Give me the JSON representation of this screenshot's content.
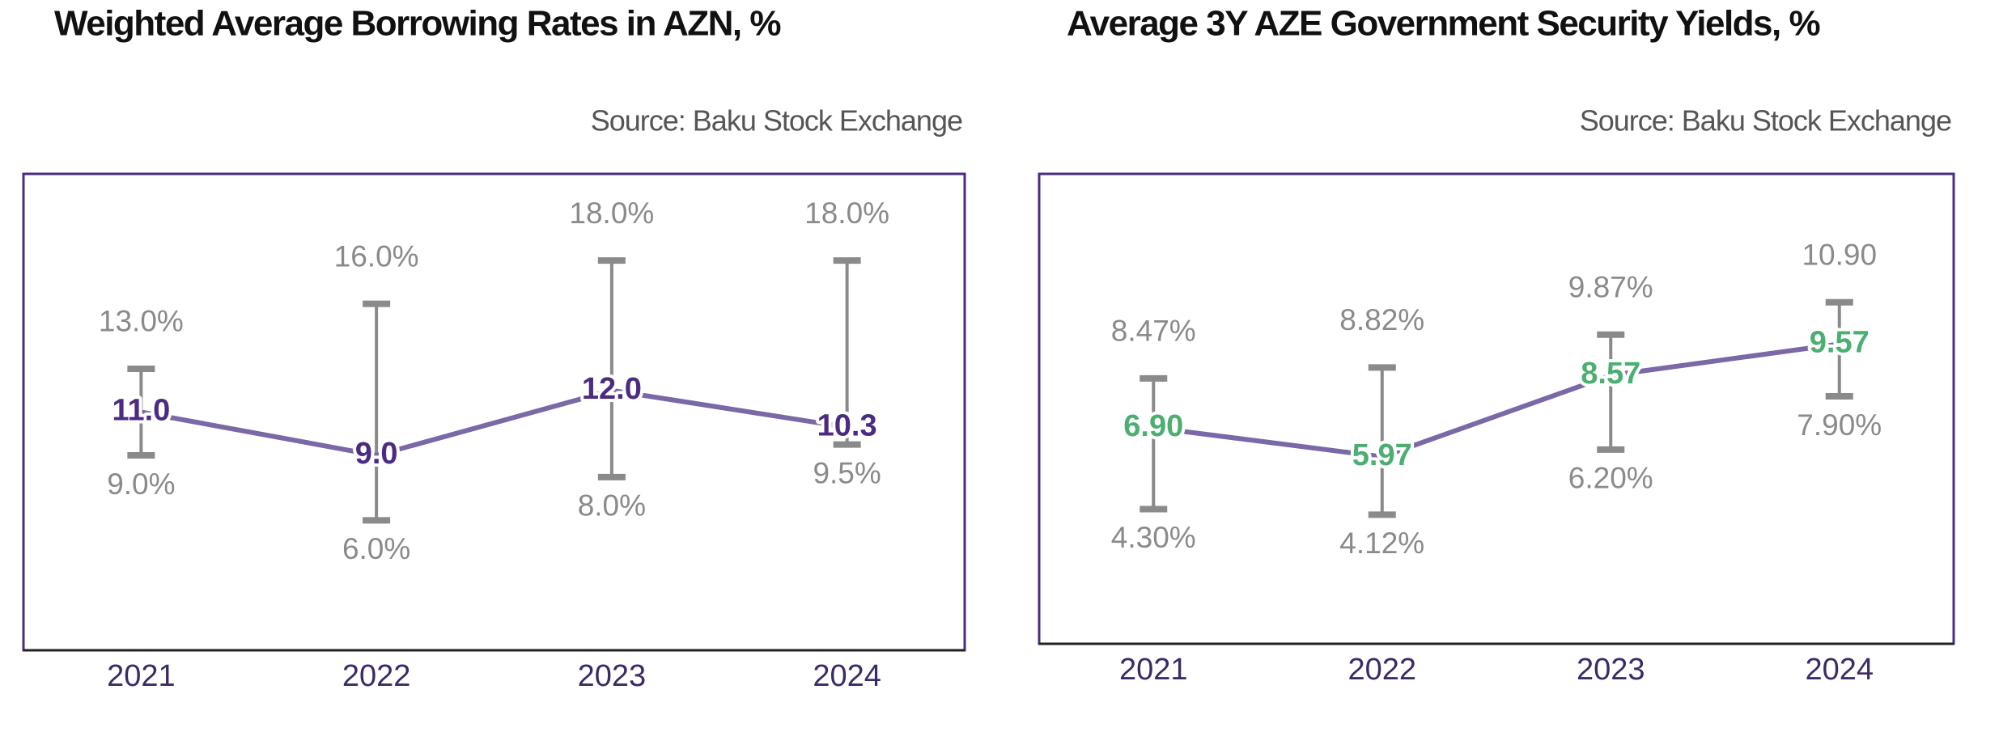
{
  "chart_data": [
    {
      "type": "line",
      "title": "Weighted Average Borrowing Rates in AZN, %",
      "source": "Source: Baku Stock Exchange",
      "categories": [
        "2021",
        "2022",
        "2023",
        "2024"
      ],
      "values": [
        11.0,
        9.0,
        12.0,
        10.3
      ],
      "value_labels": [
        "11.0",
        "9.0",
        "12.0",
        "10.3"
      ],
      "high": [
        13.0,
        16.0,
        18.0,
        18.0
      ],
      "high_labels": [
        "13.0%",
        "16.0%",
        "18.0%",
        "18.0%"
      ],
      "low": [
        9.0,
        6.0,
        8.0,
        9.5
      ],
      "low_labels": [
        "9.0%",
        "6.0%",
        "8.0%",
        "9.5%"
      ],
      "ylim": [
        0,
        22
      ],
      "color": "#7b68a6",
      "label_color": "#4b2c82",
      "range_color": "#8a8a8a"
    },
    {
      "type": "line",
      "title": "Average 3Y AZE Government Security Yields, %",
      "source": "Source: Baku Stock Exchange",
      "categories": [
        "2021",
        "2022",
        "2023",
        "2024"
      ],
      "values": [
        6.9,
        5.97,
        8.57,
        9.57
      ],
      "value_labels": [
        "6.90",
        "5.97",
        "8.57",
        "9.57"
      ],
      "high": [
        8.47,
        8.82,
        9.87,
        10.9
      ],
      "high_labels": [
        "8.47%",
        "8.82%",
        "9.87%",
        "10.90"
      ],
      "low": [
        4.3,
        4.12,
        6.2,
        7.9
      ],
      "low_labels": [
        "4.30%",
        "4.12%",
        "6.20%",
        "7.90%"
      ],
      "ylim": [
        0,
        15
      ],
      "color": "#7b68a6",
      "label_color": "#4caf72",
      "range_color": "#8a8a8a"
    }
  ]
}
